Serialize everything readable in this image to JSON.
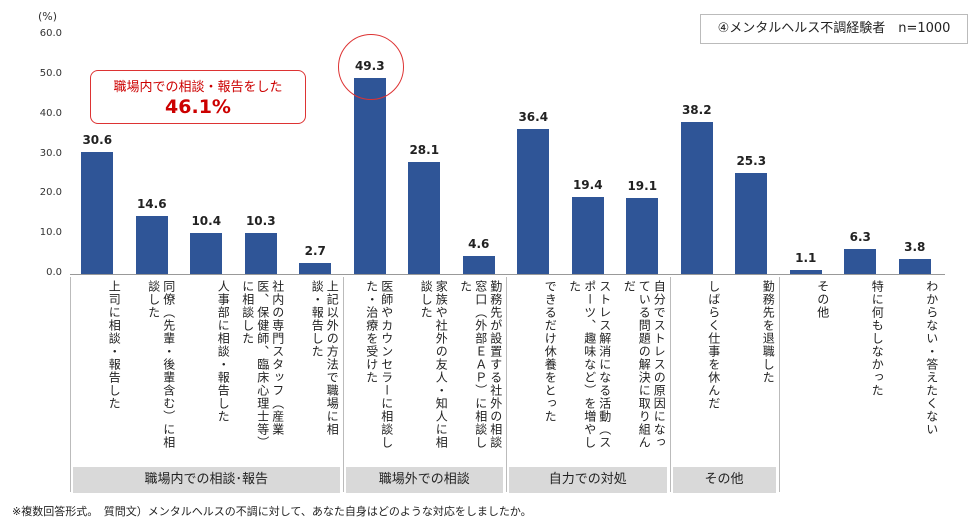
{
  "chart_data": {
    "type": "bar",
    "title": "④メンタルヘルス不調経験者　n=1000",
    "unit_label": "(%)",
    "ylim": [
      0,
      60
    ],
    "yticks": [
      "60.0",
      "50.0",
      "40.0",
      "30.0",
      "20.0",
      "10.0",
      "0.0"
    ],
    "categories": [
      "上司に相談・報告した",
      "同僚（先輩・後輩含む）に相談した",
      "人事部に相談・報告した",
      "社内の専門スタッフ（産業医、保健師、臨床心理士等）に相談した",
      "上記以外の方法で職場に相談・報告した",
      "医師やカウンセラーに相談した・治療を受けた",
      "家族や社外の友人・知人に相談した",
      "勤務先が設置する社外の相談窓口（外部ＥＡＰ）に相談した",
      "できるだけ休養をとった",
      "ストレス解消になる活動（スポーツ、趣味など）を増やした",
      "自分でストレスの原因になっている問題の解決に取り組んだ",
      "しばらく仕事を休んだ",
      "勤務先を退職した",
      "その他",
      "特に何もしなかった",
      "わからない・答えたくない"
    ],
    "values": [
      30.6,
      14.6,
      10.4,
      10.3,
      2.7,
      49.3,
      28.1,
      4.6,
      36.4,
      19.4,
      19.1,
      38.2,
      25.3,
      1.1,
      6.3,
      3.8
    ],
    "value_labels": [
      "30.6",
      "14.6",
      "10.4",
      "10.3",
      "2.7",
      "49.3",
      "28.1",
      "4.6",
      "36.4",
      "19.4",
      "19.1",
      "38.2",
      "25.3",
      "1.1",
      "6.3",
      "3.8"
    ],
    "groups": [
      {
        "label": "職場内での相談･報告",
        "start": 0,
        "end": 4
      },
      {
        "label": "職場外での相談",
        "start": 5,
        "end": 7
      },
      {
        "label": "自力での対処",
        "start": 8,
        "end": 10
      },
      {
        "label": "その他",
        "start": 11,
        "end": 12
      }
    ],
    "callout": {
      "line1": "職場内での相談・報告をした",
      "line2": "46.1%"
    },
    "highlighted_index": 5,
    "bar_color": "#2f5597",
    "highlight_color": "#dd3333",
    "grid": false
  },
  "footnote": "※複数回答形式。　質問文）メンタルヘルスの不調に対して、あなた自身はどのような対応をしましたか。"
}
